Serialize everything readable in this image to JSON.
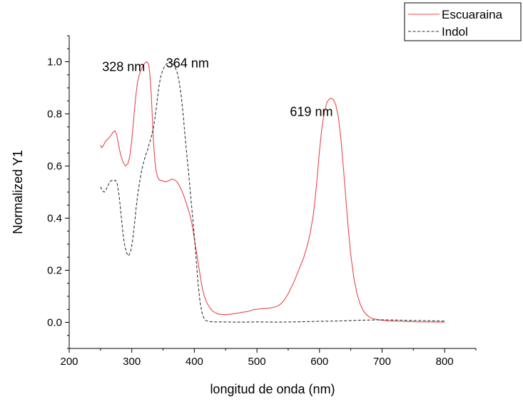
{
  "chart_data": {
    "type": "line",
    "xlabel": "longitud de onda (nm)",
    "ylabel": "Normalized Y1",
    "xlim": [
      200,
      850
    ],
    "ylim": [
      -0.1,
      1.1
    ],
    "x_ticks": [
      200,
      300,
      400,
      500,
      600,
      700,
      800
    ],
    "y_ticks": [
      0.0,
      0.2,
      0.4,
      0.6,
      0.8,
      1.0
    ],
    "x_tick_labels": [
      "200",
      "300",
      "400",
      "500",
      "600",
      "700",
      "800"
    ],
    "y_tick_labels": [
      "0.0",
      "0.2",
      "0.4",
      "0.6",
      "0.8",
      "1.0"
    ],
    "grid": false,
    "legend_position": "top-right outside",
    "series": [
      {
        "name": "Escuaraina",
        "color": "#e8474c",
        "style": "solid",
        "x": [
          250,
          252,
          255,
          258,
          262,
          266,
          270,
          273,
          276,
          279,
          282,
          286,
          290,
          294,
          297,
          300,
          303,
          306,
          309,
          312,
          315,
          318,
          321,
          324,
          327,
          329,
          331,
          333,
          335,
          337,
          339,
          341,
          343,
          345,
          348,
          352,
          356,
          360,
          364,
          368,
          372,
          376,
          380,
          384,
          388,
          392,
          396,
          400,
          404,
          408,
          412,
          416,
          420,
          425,
          430,
          435,
          440,
          445,
          450,
          455,
          460,
          465,
          470,
          475,
          480,
          485,
          490,
          495,
          500,
          505,
          510,
          515,
          520,
          525,
          530,
          535,
          540,
          545,
          550,
          555,
          560,
          565,
          570,
          575,
          580,
          585,
          590,
          595,
          600,
          604,
          608,
          612,
          616,
          619,
          622,
          626,
          630,
          634,
          638,
          642,
          646,
          650,
          655,
          660,
          665,
          670,
          675,
          680,
          685,
          690,
          695,
          700,
          710,
          720,
          730,
          740,
          750,
          760,
          770,
          780,
          790,
          800
        ],
        "y": [
          0.68,
          0.67,
          0.68,
          0.695,
          0.705,
          0.715,
          0.73,
          0.735,
          0.72,
          0.68,
          0.645,
          0.615,
          0.6,
          0.61,
          0.64,
          0.7,
          0.78,
          0.86,
          0.92,
          0.95,
          0.97,
          0.985,
          0.995,
          1.0,
          0.99,
          0.95,
          0.88,
          0.78,
          0.68,
          0.62,
          0.58,
          0.56,
          0.55,
          0.545,
          0.545,
          0.54,
          0.54,
          0.545,
          0.55,
          0.548,
          0.54,
          0.525,
          0.505,
          0.48,
          0.45,
          0.42,
          0.38,
          0.32,
          0.26,
          0.2,
          0.14,
          0.1,
          0.075,
          0.055,
          0.042,
          0.035,
          0.031,
          0.03,
          0.03,
          0.031,
          0.032,
          0.034,
          0.036,
          0.038,
          0.04,
          0.042,
          0.045,
          0.05,
          0.05,
          0.052,
          0.053,
          0.054,
          0.055,
          0.057,
          0.06,
          0.065,
          0.075,
          0.09,
          0.11,
          0.135,
          0.16,
          0.19,
          0.22,
          0.25,
          0.29,
          0.34,
          0.41,
          0.52,
          0.66,
          0.75,
          0.81,
          0.845,
          0.858,
          0.86,
          0.855,
          0.835,
          0.79,
          0.71,
          0.6,
          0.48,
          0.36,
          0.26,
          0.17,
          0.11,
          0.07,
          0.045,
          0.03,
          0.02,
          0.015,
          0.012,
          0.01,
          0.008,
          0.006,
          0.005,
          0.004,
          0.003,
          0.003,
          0.002,
          0.002,
          0.002,
          0.001,
          0.001
        ]
      },
      {
        "name": "Indol",
        "color": "#333333",
        "style": "dashed",
        "x": [
          250,
          253,
          256,
          259,
          262,
          265,
          268,
          271,
          274,
          277,
          280,
          283,
          286,
          289,
          292,
          295,
          298,
          301,
          304,
          307,
          310,
          313,
          316,
          319,
          322,
          325,
          328,
          331,
          334,
          337,
          340,
          343,
          346,
          349,
          352,
          355,
          358,
          361,
          364,
          367,
          370,
          373,
          376,
          379,
          382,
          385,
          388,
          391,
          394,
          397,
          400,
          403,
          406,
          409,
          412,
          415,
          418,
          422,
          426,
          430,
          440,
          460,
          480,
          500,
          520,
          540,
          560,
          580,
          600,
          620,
          640,
          660,
          680,
          700,
          720,
          740,
          760,
          780,
          800
        ],
        "y": [
          0.52,
          0.505,
          0.5,
          0.51,
          0.525,
          0.54,
          0.545,
          0.545,
          0.545,
          0.53,
          0.48,
          0.41,
          0.34,
          0.29,
          0.265,
          0.255,
          0.27,
          0.31,
          0.37,
          0.44,
          0.5,
          0.545,
          0.585,
          0.615,
          0.64,
          0.66,
          0.685,
          0.71,
          0.74,
          0.78,
          0.84,
          0.9,
          0.94,
          0.965,
          0.98,
          0.99,
          0.998,
          1.0,
          0.999,
          0.99,
          0.975,
          0.955,
          0.92,
          0.87,
          0.8,
          0.72,
          0.64,
          0.57,
          0.49,
          0.41,
          0.33,
          0.24,
          0.15,
          0.08,
          0.04,
          0.018,
          0.008,
          0.004,
          0.003,
          0.002,
          0.002,
          0.001,
          0.001,
          0.002,
          0.001,
          0.001,
          0.002,
          0.003,
          0.004,
          0.005,
          0.006,
          0.008,
          0.009,
          0.01,
          0.009,
          0.008,
          0.007,
          0.006,
          0.005
        ]
      }
    ],
    "annotations": [
      {
        "text": "328 nm",
        "x": 328,
        "y": 1.0
      },
      {
        "text": "364 nm",
        "x": 364,
        "y": 1.0
      },
      {
        "text": "619 nm",
        "x": 619,
        "y": 0.86
      }
    ]
  }
}
